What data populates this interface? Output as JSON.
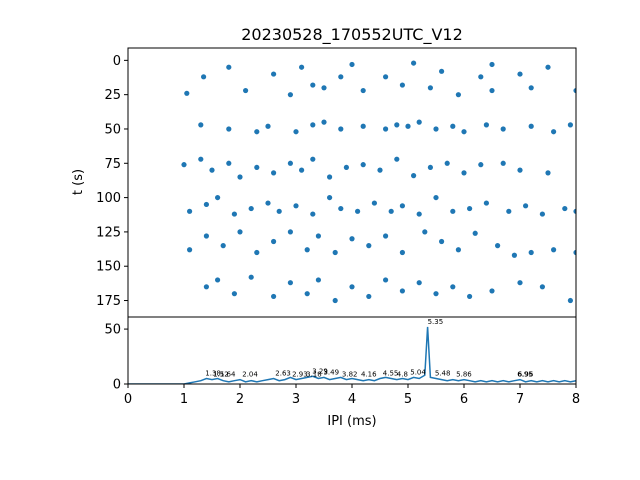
{
  "chart_data": [
    {
      "type": "scatter",
      "title": "20230528_170552UTC_V12",
      "ylabel": "t (s)",
      "color": "#1f77b4",
      "xlim": [
        0,
        8
      ],
      "ylim": [
        187,
        -9
      ],
      "yticks": [
        0,
        25,
        50,
        75,
        100,
        125,
        150,
        175
      ],
      "x": [
        1.8,
        2.6,
        3.1,
        3.8,
        4.0,
        4.6,
        5.1,
        5.6,
        6.3,
        6.5,
        7.0,
        7.5,
        1.05,
        1.35,
        2.1,
        2.9,
        3.3,
        3.5,
        4.2,
        4.9,
        5.4,
        5.9,
        6.5,
        7.2,
        8.0,
        1.3,
        1.8,
        2.3,
        2.5,
        3.0,
        3.3,
        3.5,
        3.8,
        4.2,
        4.6,
        4.8,
        5.0,
        5.2,
        5.5,
        5.8,
        6.0,
        6.4,
        6.7,
        7.2,
        7.6,
        7.9,
        1.0,
        1.3,
        1.5,
        1.8,
        2.0,
        2.3,
        2.6,
        2.9,
        3.1,
        3.3,
        3.6,
        3.9,
        4.2,
        4.5,
        4.8,
        5.1,
        5.4,
        5.7,
        6.0,
        6.3,
        6.7,
        7.0,
        7.5,
        1.1,
        1.4,
        1.6,
        1.9,
        2.2,
        2.5,
        2.7,
        3.0,
        3.3,
        3.6,
        3.8,
        4.1,
        4.4,
        4.7,
        4.9,
        5.2,
        5.5,
        5.8,
        6.1,
        6.4,
        6.8,
        7.1,
        7.4,
        7.8,
        8.0,
        1.1,
        1.4,
        1.7,
        2.0,
        2.3,
        2.6,
        2.9,
        3.2,
        3.4,
        3.7,
        4.0,
        4.3,
        4.6,
        4.9,
        5.3,
        5.6,
        5.9,
        6.2,
        6.6,
        6.9,
        7.2,
        7.6,
        8.0,
        1.4,
        1.6,
        1.9,
        2.2,
        2.6,
        2.9,
        3.2,
        3.4,
        3.7,
        4.0,
        4.3,
        4.6,
        4.9,
        5.2,
        5.5,
        5.8,
        6.1,
        6.5,
        7.0,
        7.4,
        7.9
      ],
      "y": [
        5,
        10,
        5,
        12,
        3,
        12,
        2,
        8,
        12,
        3,
        10,
        5,
        24,
        12,
        22,
        25,
        18,
        20,
        22,
        18,
        20,
        25,
        22,
        20,
        22,
        47,
        50,
        52,
        48,
        52,
        47,
        45,
        50,
        48,
        50,
        47,
        48,
        45,
        50,
        48,
        52,
        47,
        50,
        48,
        52,
        47,
        76,
        72,
        80,
        75,
        85,
        78,
        82,
        75,
        80,
        72,
        85,
        78,
        76,
        80,
        72,
        84,
        78,
        75,
        82,
        76,
        75,
        80,
        82,
        110,
        105,
        100,
        112,
        108,
        104,
        110,
        106,
        112,
        100,
        108,
        110,
        104,
        110,
        106,
        112,
        100,
        110,
        108,
        104,
        110,
        106,
        112,
        108,
        110,
        138,
        128,
        135,
        125,
        140,
        132,
        125,
        138,
        128,
        140,
        130,
        135,
        128,
        140,
        125,
        132,
        138,
        126,
        135,
        142,
        140,
        138,
        140,
        165,
        160,
        170,
        158,
        172,
        162,
        170,
        160,
        175,
        165,
        172,
        160,
        168,
        162,
        170,
        165,
        172,
        168,
        162,
        165,
        175
      ]
    },
    {
      "type": "line",
      "xlabel": "IPI (ms)",
      "color": "#1f77b4",
      "xlim": [
        0,
        8
      ],
      "xticks": [
        0,
        1,
        2,
        3,
        4,
        5,
        6,
        7,
        8
      ],
      "ylim": [
        0,
        61
      ],
      "yticks": [
        0,
        50
      ],
      "x": [
        0,
        0.1,
        0.2,
        0.3,
        0.4,
        0.5,
        0.6,
        0.7,
        0.8,
        0.9,
        1.0,
        1.1,
        1.2,
        1.3,
        1.4,
        1.5,
        1.6,
        1.7,
        1.8,
        1.9,
        2.0,
        2.1,
        2.2,
        2.3,
        2.4,
        2.5,
        2.6,
        2.7,
        2.8,
        2.9,
        3.0,
        3.1,
        3.2,
        3.3,
        3.4,
        3.5,
        3.6,
        3.7,
        3.8,
        3.9,
        4.0,
        4.1,
        4.2,
        4.3,
        4.4,
        4.5,
        4.6,
        4.7,
        4.8,
        4.9,
        5.0,
        5.1,
        5.2,
        5.3,
        5.35,
        5.4,
        5.5,
        5.6,
        5.7,
        5.8,
        5.9,
        6.0,
        6.1,
        6.2,
        6.3,
        6.4,
        6.5,
        6.6,
        6.7,
        6.8,
        6.9,
        7.0,
        7.1,
        7.2,
        7.3,
        7.4,
        7.5,
        7.6,
        7.7,
        7.8,
        7.9,
        8.0
      ],
      "values": [
        0,
        0,
        0,
        0,
        0,
        0,
        0,
        0,
        0,
        0,
        0,
        1,
        2,
        3,
        5,
        4,
        5,
        3,
        2,
        3,
        4,
        2,
        3,
        2,
        3,
        4,
        5,
        3,
        4,
        6,
        4,
        5,
        6,
        7,
        5,
        6,
        4,
        5,
        6,
        4,
        5,
        4,
        3,
        4,
        3,
        5,
        6,
        5,
        4,
        5,
        4,
        6,
        5,
        8,
        52,
        6,
        5,
        4,
        3,
        4,
        3,
        4,
        3,
        2,
        3,
        2,
        3,
        2,
        3,
        2,
        3,
        4,
        2,
        3,
        2,
        3,
        2,
        3,
        2,
        3,
        2,
        3
      ],
      "annotations": [
        {
          "x": 1.38,
          "y": 5,
          "label": "1.38"
        },
        {
          "x": 1.52,
          "y": 4,
          "label": "1.52"
        },
        {
          "x": 1.64,
          "y": 4,
          "label": "1.64"
        },
        {
          "x": 2.04,
          "y": 4,
          "label": "2.04"
        },
        {
          "x": 2.63,
          "y": 5,
          "label": "2.63"
        },
        {
          "x": 2.93,
          "y": 4,
          "label": "2.93"
        },
        {
          "x": 3.18,
          "y": 4,
          "label": "3.18"
        },
        {
          "x": 3.29,
          "y": 7,
          "label": "3.29"
        },
        {
          "x": 3.49,
          "y": 6,
          "label": "3.49"
        },
        {
          "x": 3.82,
          "y": 4,
          "label": "3.82"
        },
        {
          "x": 4.16,
          "y": 4,
          "label": "4.16"
        },
        {
          "x": 4.55,
          "y": 5,
          "label": "4.55"
        },
        {
          "x": 4.8,
          "y": 4,
          "label": "4.8"
        },
        {
          "x": 5.04,
          "y": 6,
          "label": "5.04"
        },
        {
          "x": 5.35,
          "y": 52,
          "label": "5.35"
        },
        {
          "x": 5.48,
          "y": 5,
          "label": "5.48"
        },
        {
          "x": 5.86,
          "y": 4,
          "label": "5.86"
        },
        {
          "x": 6.95,
          "y": 4,
          "label": "6.95"
        },
        {
          "x": 6.96,
          "y": 4,
          "label": "6.96"
        }
      ]
    }
  ]
}
